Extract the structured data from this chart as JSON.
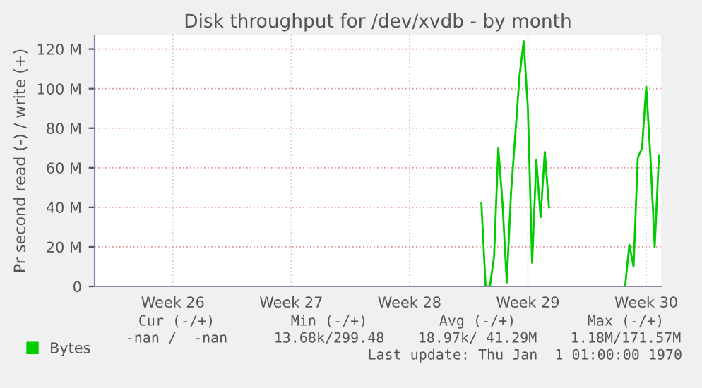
{
  "chart_data": {
    "type": "line",
    "title": "Disk throughput for /dev/xvdb - by month",
    "ylabel": "Pr second read (-) / write (+)",
    "categories": [
      null,
      null,
      null,
      null,
      null,
      null,
      null,
      null,
      null,
      null,
      null,
      null,
      null,
      null,
      null,
      null,
      null,
      null,
      "Week 26",
      null,
      null,
      null,
      null,
      null,
      null,
      null,
      null,
      null,
      null,
      null,
      null,
      null,
      null,
      null,
      null,
      null,
      null,
      null,
      null,
      null,
      null,
      null,
      null,
      null,
      null,
      null,
      "Week 27",
      null,
      null,
      null,
      null,
      null,
      null,
      null,
      null,
      null,
      null,
      null,
      null,
      null,
      null,
      null,
      null,
      null,
      null,
      null,
      null,
      null,
      null,
      null,
      null,
      null,
      null,
      null,
      "Week 28",
      null,
      null,
      null,
      null,
      null,
      null,
      null,
      null,
      null,
      null,
      null,
      null,
      null,
      null,
      null,
      null,
      null,
      null,
      null,
      null,
      null,
      null,
      null,
      null,
      null,
      null,
      null,
      "Week 29",
      null,
      null,
      null,
      null,
      null,
      null,
      null,
      null,
      null,
      null,
      null,
      null,
      null,
      null,
      null,
      null,
      null,
      null,
      null,
      null,
      null,
      null,
      null,
      null,
      null,
      null,
      null,
      "Week 30",
      null,
      null,
      null
    ],
    "series": [
      {
        "name": "Bytes",
        "color": "#00cc00",
        "values": [
          null,
          null,
          null,
          null,
          null,
          null,
          null,
          null,
          null,
          null,
          null,
          null,
          null,
          null,
          null,
          null,
          null,
          null,
          null,
          null,
          null,
          null,
          null,
          null,
          null,
          null,
          null,
          null,
          null,
          null,
          null,
          null,
          null,
          null,
          null,
          null,
          null,
          null,
          null,
          null,
          null,
          null,
          null,
          null,
          null,
          null,
          null,
          null,
          null,
          null,
          null,
          null,
          null,
          null,
          null,
          null,
          null,
          null,
          null,
          null,
          null,
          null,
          null,
          null,
          null,
          null,
          null,
          null,
          null,
          null,
          null,
          null,
          null,
          null,
          null,
          null,
          null,
          null,
          null,
          null,
          null,
          null,
          null,
          null,
          null,
          null,
          null,
          null,
          null,
          null,
          null,
          42,
          0,
          0,
          15,
          70,
          42,
          2,
          47,
          76,
          106,
          124,
          90,
          12,
          64,
          35,
          68,
          40,
          null,
          null,
          null,
          null,
          null,
          null,
          null,
          null,
          null,
          null,
          null,
          null,
          null,
          null,
          null,
          null,
          null,
          0,
          21,
          10,
          65,
          70,
          101,
          65,
          20,
          66
        ]
      }
    ],
    "ylim": [
      0,
      127
    ],
    "yticks": [
      {
        "value": 0,
        "label": "0"
      },
      {
        "value": 20,
        "label": "20 M"
      },
      {
        "value": 40,
        "label": "40 M"
      },
      {
        "value": 60,
        "label": "60 M"
      },
      {
        "value": 80,
        "label": "80 M"
      },
      {
        "value": 100,
        "label": "100 M"
      },
      {
        "value": 120,
        "label": "120 M"
      }
    ],
    "grid": true,
    "legend": "bottom left",
    "marker": "none",
    "line_style": "solid",
    "annotations": [
      "Cur (-/+)",
      "Min (-/+)",
      "Avg (-/+)",
      "Max (-/+)",
      "-nan /  -nan",
      "13.68k/299.48",
      "18.97k/ 41.29M",
      "1.18M/171.57M",
      "Last update: Thu Jan  1 01:00:00 1970"
    ]
  }
}
